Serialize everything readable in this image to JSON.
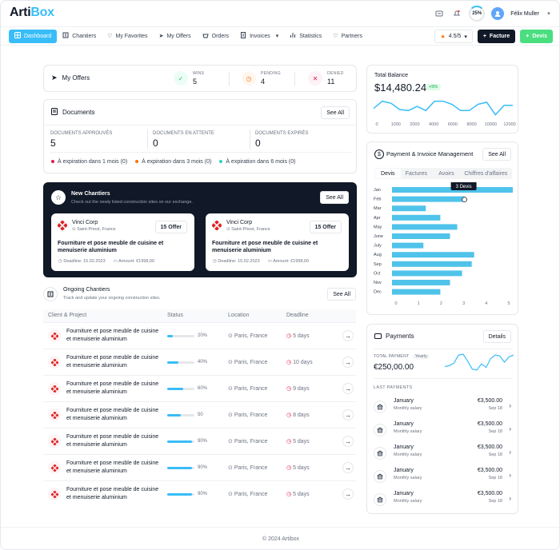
{
  "brand": {
    "part1": "Arti",
    "part2": "Box"
  },
  "topbar": {
    "progress": "25%",
    "user": "Félix Muller"
  },
  "nav": [
    {
      "label": "Dashboard"
    },
    {
      "label": "Chantiers"
    },
    {
      "label": "My Favorites"
    },
    {
      "label": "My Offers"
    },
    {
      "label": "Orders"
    },
    {
      "label": "Invoices"
    },
    {
      "label": "Statistics"
    },
    {
      "label": "Partners"
    }
  ],
  "actions": {
    "rating": "4.5/5",
    "facture": "Facture",
    "devis": "Devis"
  },
  "my_offers": {
    "title": "My Offers",
    "stats": [
      {
        "label": "WINS",
        "value": "5"
      },
      {
        "label": "PENDING",
        "value": "4"
      },
      {
        "label": "DENIED",
        "value": "11"
      }
    ]
  },
  "documents": {
    "title": "Documents",
    "see_all": "See All",
    "cols": [
      {
        "label": "DOCUMENTS APPROUVÉS",
        "value": "5"
      },
      {
        "label": "DOCUMENTS EN ATTENTE",
        "value": "0"
      },
      {
        "label": "DOCUMENTS EXPIRÉS",
        "value": "0"
      }
    ],
    "expirations": [
      {
        "label": "À expiration dans 1 mois (0)",
        "color": "#e11d48"
      },
      {
        "label": "À expiration dans 3 mois (0)",
        "color": "#f97316"
      },
      {
        "label": "À expiration dans 6 mois (0)",
        "color": "#2dd4bf"
      }
    ]
  },
  "new_chantiers": {
    "title": "New Chantiers",
    "subtitle": "Check out the newly listed construction sites on our exchange.",
    "see_all": "See All",
    "offers": [
      {
        "company": "Vinci Corp",
        "location": "Saint-Priest, France",
        "badge": "15 Offer",
        "title": "Fourniture et pose meuble de cuisine et menuiserie aluminium",
        "deadline": "Deadline: 15.02.2023",
        "amount": "Amount: €1998,00"
      },
      {
        "company": "Vinci Corp",
        "location": "Saint-Priest, France",
        "badge": "15 Offer",
        "title": "Fourniture et pose meuble de cuisine et menuiserie aluminium",
        "deadline": "Deadline: 15.02.2023",
        "amount": "Amount: €1998,00"
      }
    ]
  },
  "ongoing": {
    "title": "Ongoing Chantiers",
    "subtitle": "Track and update your ongoing construction sites.",
    "see_all": "See All",
    "headers": [
      "Client & Project",
      "Status",
      "Location",
      "Deadline"
    ],
    "rows": [
      {
        "project": "Fourniture et pose meuble de cuisine et menuiserie aluminium",
        "progress": 20,
        "progress_label": "20%",
        "location": "Paris, France",
        "deadline": "5 days"
      },
      {
        "project": "Fourniture et pose meuble de cuisine et menuiserie aluminium",
        "progress": 40,
        "progress_label": "40%",
        "location": "Paris, France",
        "deadline": "10 days"
      },
      {
        "project": "Fourniture et pose meuble de cuisine et menuiserie aluminium",
        "progress": 60,
        "progress_label": "60%",
        "location": "Paris, France",
        "deadline": "9 days"
      },
      {
        "project": "Fourniture et pose meuble de cuisine et menuiserie aluminium",
        "progress": 50,
        "progress_label": "50",
        "location": "Paris, France",
        "deadline": "8 days"
      },
      {
        "project": "Fourniture et pose meuble de cuisine et menuiserie aluminium",
        "progress": 90,
        "progress_label": "90%",
        "location": "Paris, France",
        "deadline": "5 days"
      },
      {
        "project": "Fourniture et pose meuble de cuisine et menuiserie aluminium",
        "progress": 90,
        "progress_label": "90%",
        "location": "Paris, France",
        "deadline": "5 days"
      },
      {
        "project": "Fourniture et pose meuble de cuisine et menuiserie aluminium",
        "progress": 90,
        "progress_label": "90%",
        "location": "Paris, France",
        "deadline": "5 days"
      }
    ]
  },
  "balance": {
    "title": "Total Balance",
    "amount": "$14,480.24",
    "change": "+5%",
    "x_ticks": [
      "0",
      "1000",
      "2000",
      "4000",
      "6000",
      "8000",
      "10000",
      "12000"
    ],
    "line": [
      0.45,
      0.1,
      0.2,
      0.5,
      0.55,
      0.35,
      0.55,
      0.1,
      0.1,
      0.25,
      0.55,
      0.55,
      0.25,
      0.15,
      0.75,
      0.3,
      0.3
    ]
  },
  "payment_mgmt": {
    "title": "Payment & Invoice Management",
    "see_all": "See All",
    "tabs": [
      "Devis",
      "Factures",
      "Avoirs",
      "Chiffres d'affaires"
    ],
    "tooltip": "3 Devis"
  },
  "chart_data": {
    "type": "bar",
    "orientation": "horizontal",
    "categories": [
      "Jan",
      "Feb",
      "Mar",
      "Apr",
      "May",
      "June",
      "July",
      "Aug",
      "Sep",
      "Oct",
      "Nov",
      "Dec"
    ],
    "values": [
      5.0,
      3.0,
      1.4,
      2.0,
      2.7,
      2.4,
      1.3,
      3.4,
      3.3,
      2.9,
      2.4,
      2.0
    ],
    "xlim": [
      0,
      5
    ],
    "x_ticks": [
      "0",
      "1",
      "2",
      "3",
      "4",
      "5"
    ],
    "color": "#4fc3ea"
  },
  "payments": {
    "title": "Payments",
    "details": "Details",
    "total_label": "TOTAL PAYMENT",
    "period": "Yearly",
    "total": "€250,00.00",
    "last_label": "LAST PAYMENTS",
    "spark": [
      0.75,
      0.7,
      0.55,
      0.1,
      0.05,
      0.45,
      0.9,
      0.95,
      0.6,
      0.8,
      0.3,
      0.1,
      0.15,
      0.5,
      0.2,
      0.1
    ],
    "items": [
      {
        "month": "January",
        "kind": "Monthly salary",
        "amount": "€3,500.00",
        "date": "Sep 18"
      },
      {
        "month": "January",
        "kind": "Monthly salary",
        "amount": "€3,500.00",
        "date": "Sep 18"
      },
      {
        "month": "January",
        "kind": "Monthly salary",
        "amount": "€3,500.00",
        "date": "Sep 18"
      },
      {
        "month": "January",
        "kind": "Monthly salary",
        "amount": "€3,500.00",
        "date": "Sep 18"
      },
      {
        "month": "January",
        "kind": "Monthly salary",
        "amount": "€3,500.00",
        "date": "Sep 18"
      }
    ]
  },
  "footer": "© 2024 Artibox"
}
